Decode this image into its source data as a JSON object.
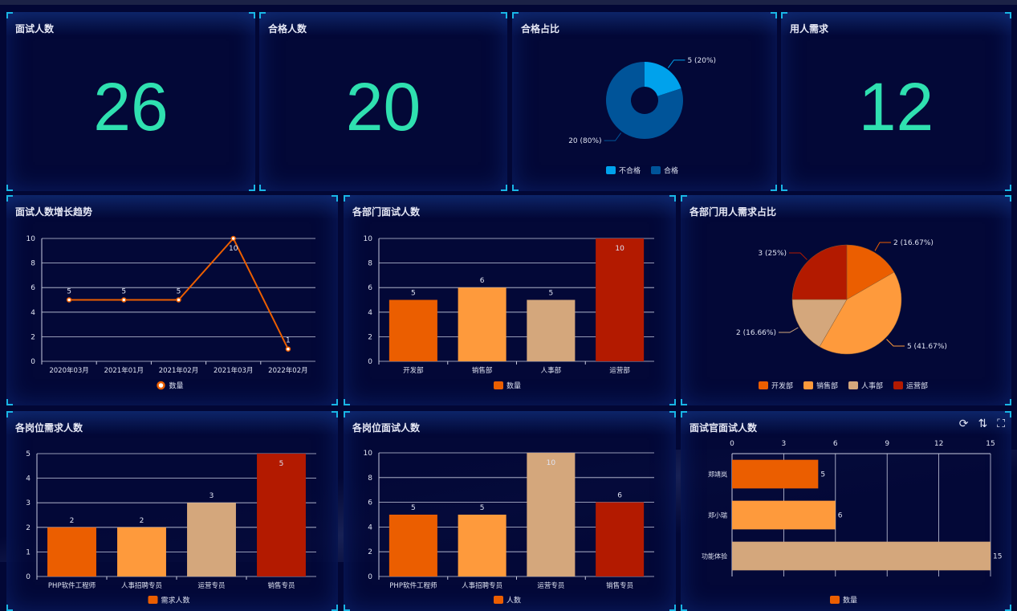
{
  "kpis": [
    {
      "title": "面试人数",
      "value": "26"
    },
    {
      "title": "合格人数",
      "value": "20"
    },
    {
      "title": "合格占比"
    },
    {
      "title": "用人需求",
      "value": "12"
    }
  ],
  "toolbox": {
    "icons": [
      "refresh-icon",
      "sort-icon",
      "fullscreen-icon"
    ]
  },
  "chart_data": [
    {
      "id": "pass-ratio",
      "type": "pie",
      "title": "合格占比",
      "donut": true,
      "categories": [
        "不合格",
        "合格"
      ],
      "values": [
        5,
        20
      ],
      "labels": [
        "5 (20%)",
        "20 (80%)"
      ],
      "colors": [
        "#00a2ec",
        "#005499"
      ],
      "legend": "bottom"
    },
    {
      "id": "trend",
      "type": "line",
      "title": "面试人数增长趋势",
      "categories": [
        "2020年03月",
        "2021年01月",
        "2021年02月",
        "2021年03月",
        "2022年02月"
      ],
      "series": [
        {
          "name": "数量",
          "values": [
            5,
            5,
            5,
            10,
            1
          ]
        }
      ],
      "ylim": [
        0,
        10
      ],
      "yticks": [
        0,
        2,
        4,
        6,
        8,
        10
      ],
      "colors": [
        "#eb5e00"
      ],
      "legend": "bottom",
      "grid": true
    },
    {
      "id": "dept-interview",
      "type": "bar",
      "title": "各部门面试人数",
      "categories": [
        "开发部",
        "销售部",
        "人事部",
        "运营部"
      ],
      "series": [
        {
          "name": "数量",
          "values": [
            5,
            6,
            5,
            10
          ]
        }
      ],
      "ylim": [
        0,
        10
      ],
      "yticks": [
        0,
        2,
        4,
        6,
        8,
        10
      ],
      "colors": [
        "#eb5e00",
        "#fe9a3c",
        "#d4a77c",
        "#b31a00"
      ],
      "legend": "bottom",
      "grid": true
    },
    {
      "id": "dept-demand",
      "type": "pie",
      "title": "各部门用人需求占比",
      "donut": false,
      "categories": [
        "开发部",
        "销售部",
        "人事部",
        "运营部"
      ],
      "values": [
        2,
        5,
        2,
        3
      ],
      "labels": [
        "2 (16.67%)",
        "5 (41.67%)",
        "2 (16.66%)",
        "3 (25%)"
      ],
      "colors": [
        "#eb5e00",
        "#fe9a3c",
        "#d4a77c",
        "#b31a00"
      ],
      "legend": "bottom"
    },
    {
      "id": "post-demand",
      "type": "bar",
      "title": "各岗位需求人数",
      "categories": [
        "PHP软件工程师",
        "人事招聘专员",
        "运营专员",
        "销售专员"
      ],
      "series": [
        {
          "name": "需求人数",
          "values": [
            2,
            2,
            3,
            5
          ]
        }
      ],
      "ylim": [
        0,
        5
      ],
      "yticks": [
        0,
        1,
        2,
        3,
        4,
        5
      ],
      "colors": [
        "#eb5e00",
        "#fe9a3c",
        "#d4a77c",
        "#b31a00"
      ],
      "legend": "bottom",
      "grid": true
    },
    {
      "id": "post-interview",
      "type": "bar",
      "title": "各岗位面试人数",
      "categories": [
        "PHP软件工程师",
        "人事招聘专员",
        "运营专员",
        "销售专员"
      ],
      "series": [
        {
          "name": "人数",
          "values": [
            5,
            5,
            10,
            6
          ]
        }
      ],
      "ylim": [
        0,
        10
      ],
      "yticks": [
        0,
        2,
        4,
        6,
        8,
        10
      ],
      "colors": [
        "#eb5e00",
        "#fe9a3c",
        "#d4a77c",
        "#b31a00"
      ],
      "legend": "bottom",
      "grid": true
    },
    {
      "id": "interviewer",
      "type": "hbar",
      "title": "面试官面试人数",
      "categories": [
        "郑靖岚",
        "郑小瑞",
        "功能体验"
      ],
      "series": [
        {
          "name": "数量",
          "values": [
            5,
            6,
            15
          ]
        }
      ],
      "xlim": [
        0,
        15
      ],
      "xticks": [
        0,
        3,
        6,
        9,
        12,
        15
      ],
      "colors": [
        "#eb5e00",
        "#fe9a3c",
        "#d4a77c"
      ],
      "legend": "bottom",
      "grid": true
    }
  ]
}
